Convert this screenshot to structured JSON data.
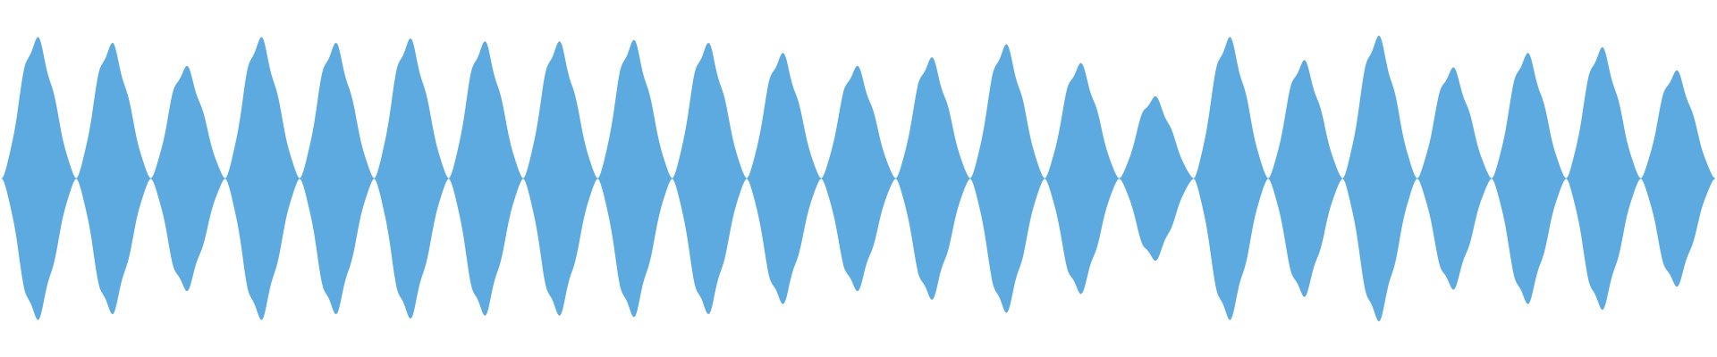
{
  "waveform": {
    "fill_color": "#5DAAE0",
    "background_color": "#FFFFFF",
    "lobe_count": 23,
    "lobe_peaks": [
      0.98,
      0.94,
      0.78,
      0.98,
      0.94,
      0.97,
      0.95,
      0.95,
      0.96,
      0.94,
      0.87,
      0.78,
      0.84,
      0.93,
      0.8,
      0.57,
      0.98,
      0.82,
      0.99,
      0.77,
      0.87,
      0.91,
      0.75
    ]
  }
}
